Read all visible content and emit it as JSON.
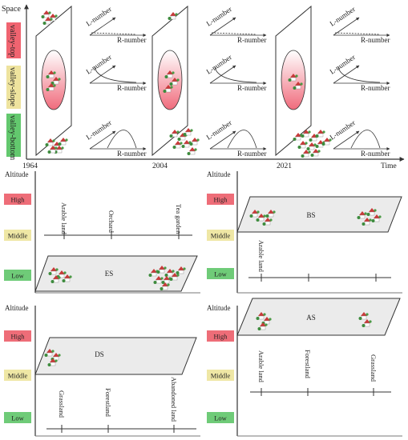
{
  "top": {
    "y_axis_label": "Space",
    "x_axis_label": "Time",
    "years": [
      "1964",
      "2004",
      "2021"
    ],
    "zones": [
      {
        "label": "valley-top",
        "color": "#f06470"
      },
      {
        "label": "valley-slope",
        "color": "#eee39e"
      },
      {
        "label": "valley-bottom",
        "color": "#63c86e"
      }
    ],
    "l_axis": "L-number",
    "r_axis": "R-number"
  },
  "scenarios": [
    {
      "code": "ES",
      "axis_label": "Altitude",
      "levels": [
        "High",
        "Middle",
        "Low"
      ],
      "plane_level": "Low",
      "land_uses": [
        "Arable land",
        "Orchard",
        "Tea garden"
      ]
    },
    {
      "code": "BS",
      "axis_label": "Altitude",
      "levels": [
        "High",
        "Middle",
        "Low"
      ],
      "plane_level": "Middle",
      "land_uses": [
        "Arable land"
      ]
    },
    {
      "code": "DS",
      "axis_label": "Altitude",
      "levels": [
        "High",
        "Middle",
        "Low"
      ],
      "plane_level": "Middle",
      "land_uses": [
        "Grassland",
        "Forestland",
        "Abandoned land"
      ]
    },
    {
      "code": "AS",
      "axis_label": "Altitude",
      "levels": [
        "High",
        "Middle",
        "Low"
      ],
      "plane_level": "High",
      "land_uses": [
        "Arable land",
        "Forestland",
        "Grassland"
      ]
    }
  ],
  "level_colors": {
    "High": "#ee6d78",
    "Middle": "#efe7a5",
    "Low": "#6fcb78"
  }
}
